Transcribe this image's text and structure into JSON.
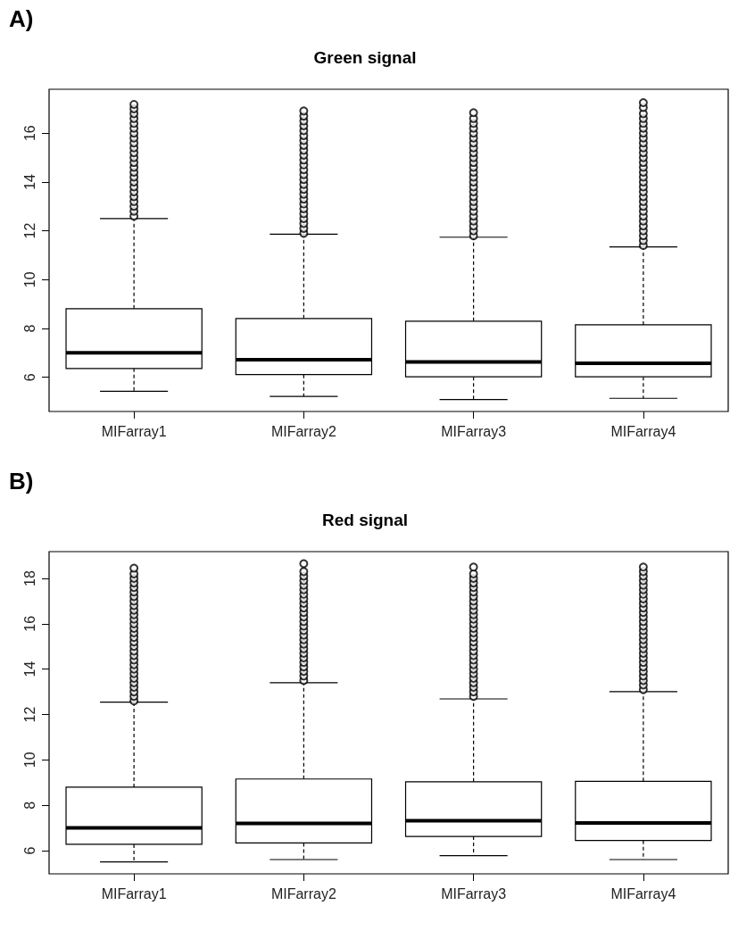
{
  "chart_data": [
    {
      "type": "box",
      "title": "Green signal",
      "annotations": [
        "A)"
      ],
      "categories": [
        "MIFarray1",
        "MIFarray2",
        "MIFarray3",
        "MIFarray4"
      ],
      "ylim": [
        4.6,
        17.8
      ],
      "yticks": [
        6,
        8,
        10,
        12,
        14,
        16
      ],
      "grid": false,
      "marker": "circle",
      "boxes": [
        {
          "low": 5.43,
          "q1": 6.36,
          "median": 7.0,
          "q3": 8.81,
          "high": 12.5,
          "outliers": [
            12.6,
            12.8,
            13.0,
            13.2,
            13.4,
            13.6,
            13.8,
            14.0,
            14.2,
            14.4,
            14.6,
            14.8,
            15.0,
            15.2,
            15.4,
            15.6,
            15.8,
            16.0,
            16.2,
            16.4,
            16.6,
            16.8,
            17.0,
            17.18
          ]
        },
        {
          "low": 5.22,
          "q1": 6.11,
          "median": 6.72,
          "q3": 8.41,
          "high": 11.86,
          "outliers": [
            11.9,
            12.1,
            12.3,
            12.5,
            12.7,
            12.9,
            13.1,
            13.3,
            13.5,
            13.7,
            13.9,
            14.1,
            14.3,
            14.5,
            14.7,
            14.9,
            15.1,
            15.3,
            15.5,
            15.7,
            15.9,
            16.1,
            16.3,
            16.5,
            16.7,
            16.91
          ]
        },
        {
          "low": 5.09,
          "q1": 6.02,
          "median": 6.63,
          "q3": 8.3,
          "high": 11.74,
          "outliers": [
            11.8,
            12.0,
            12.2,
            12.4,
            12.6,
            12.8,
            13.0,
            13.2,
            13.4,
            13.6,
            13.8,
            14.0,
            14.2,
            14.4,
            14.6,
            14.8,
            15.0,
            15.2,
            15.4,
            15.6,
            15.8,
            16.0,
            16.2,
            16.4,
            16.6,
            16.84
          ]
        },
        {
          "low": 5.14,
          "q1": 6.02,
          "median": 6.57,
          "q3": 8.15,
          "high": 11.34,
          "outliers": [
            11.4,
            11.6,
            11.8,
            12.0,
            12.2,
            12.4,
            12.6,
            12.8,
            13.0,
            13.2,
            13.4,
            13.6,
            13.8,
            14.0,
            14.2,
            14.4,
            14.6,
            14.8,
            15.0,
            15.2,
            15.4,
            15.6,
            15.8,
            16.0,
            16.2,
            16.4,
            16.6,
            16.8,
            17.05,
            17.25
          ]
        }
      ]
    },
    {
      "type": "box",
      "title": "Red signal",
      "annotations": [
        "B)"
      ],
      "categories": [
        "MIFarray1",
        "MIFarray2",
        "MIFarray3",
        "MIFarray4"
      ],
      "ylim": [
        4.98,
        19.18
      ],
      "yticks": [
        6,
        8,
        10,
        12,
        14,
        16,
        18
      ],
      "grid": false,
      "marker": "circle",
      "boxes": [
        {
          "low": 5.51,
          "q1": 6.28,
          "median": 7.01,
          "q3": 8.8,
          "high": 12.55,
          "outliers": [
            12.6,
            12.8,
            13.0,
            13.2,
            13.4,
            13.6,
            13.8,
            14.0,
            14.2,
            14.4,
            14.6,
            14.8,
            15.0,
            15.2,
            15.4,
            15.6,
            15.8,
            16.0,
            16.2,
            16.4,
            16.6,
            16.8,
            17.0,
            17.2,
            17.4,
            17.6,
            17.8,
            18.0,
            18.2,
            18.45
          ]
        },
        {
          "low": 5.61,
          "q1": 6.34,
          "median": 7.2,
          "q3": 9.16,
          "high": 13.4,
          "outliers": [
            13.5,
            13.7,
            13.9,
            14.1,
            14.3,
            14.5,
            14.7,
            14.9,
            15.1,
            15.3,
            15.5,
            15.7,
            15.9,
            16.1,
            16.3,
            16.5,
            16.7,
            16.9,
            17.1,
            17.3,
            17.5,
            17.7,
            17.9,
            18.1,
            18.3,
            18.65
          ]
        },
        {
          "low": 5.78,
          "q1": 6.63,
          "median": 7.32,
          "q3": 9.04,
          "high": 12.69,
          "outliers": [
            12.8,
            13.0,
            13.2,
            13.4,
            13.6,
            13.8,
            14.0,
            14.2,
            14.4,
            14.6,
            14.8,
            15.0,
            15.2,
            15.4,
            15.6,
            15.8,
            16.0,
            16.2,
            16.4,
            16.6,
            16.8,
            17.0,
            17.2,
            17.4,
            17.6,
            17.8,
            18.0,
            18.2,
            18.5
          ]
        },
        {
          "low": 5.61,
          "q1": 6.45,
          "median": 7.22,
          "q3": 9.06,
          "high": 13.01,
          "outliers": [
            13.1,
            13.3,
            13.5,
            13.7,
            13.9,
            14.1,
            14.3,
            14.5,
            14.7,
            14.9,
            15.1,
            15.3,
            15.5,
            15.7,
            15.9,
            16.1,
            16.3,
            16.5,
            16.7,
            16.9,
            17.1,
            17.3,
            17.5,
            17.7,
            17.9,
            18.1,
            18.3,
            18.5
          ]
        }
      ]
    }
  ]
}
